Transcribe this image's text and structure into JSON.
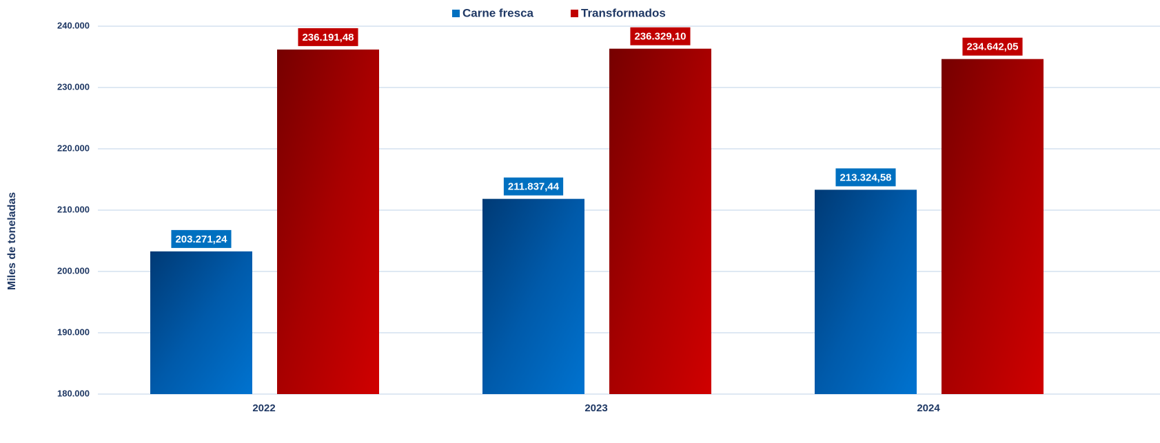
{
  "chart_data": {
    "type": "bar",
    "y_axis_label": "Miles de toneladas",
    "categories": [
      "2022",
      "2023",
      "2024"
    ],
    "series": [
      {
        "name": "Carne fresca",
        "color": "#0070c0",
        "values": [
          203271.24,
          211837.44,
          213324.58
        ],
        "value_labels": [
          "203.271,24",
          "211.837,44",
          "213.324,58"
        ]
      },
      {
        "name": "Transformados",
        "color": "#c00000",
        "values": [
          236191.48,
          236329.1,
          234642.05
        ],
        "value_labels": [
          "236.191,48",
          "236.329,10",
          "234.642,05"
        ]
      }
    ],
    "ylim": [
      180000,
      240000
    ],
    "yticks": [
      {
        "value": 180000,
        "label": "180.000"
      },
      {
        "value": 190000,
        "label": "190.000"
      },
      {
        "value": 200000,
        "label": "200.000"
      },
      {
        "value": 210000,
        "label": "210.000"
      },
      {
        "value": 220000,
        "label": "220.000"
      },
      {
        "value": 230000,
        "label": "230.000"
      },
      {
        "value": 240000,
        "label": "240.000"
      }
    ],
    "grid": true,
    "legend": "top"
  }
}
